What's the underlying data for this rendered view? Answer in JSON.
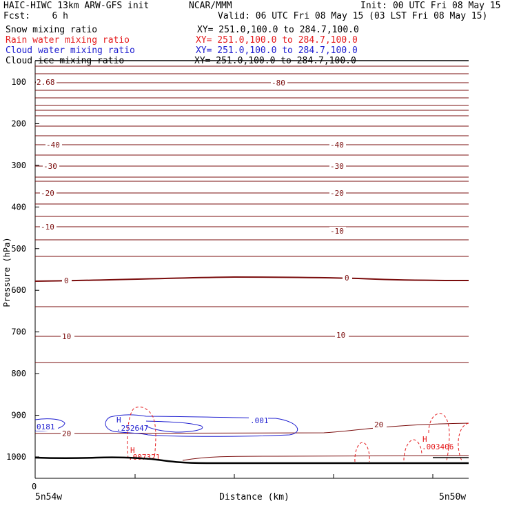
{
  "header": {
    "title": "HAIC-HIWC 13km ARW-GFS init",
    "center": "NCAR/MMM",
    "init": "Init: 00 UTC Fri 08 May 15",
    "fcst": "Fcst:    6 h",
    "valid": "Valid: 06 UTC Fri 08 May 15 (03 LST Fri 08 May 15)"
  },
  "fields": [
    {
      "name": "Snow mixing ratio",
      "xy": "XY= 251.0,100.0 to 284.7,100.0",
      "color": "#000000"
    },
    {
      "name": "Rain water mixing ratio",
      "xy": "XY= 251.0,100.0 to 284.7,100.0",
      "color": "#e41a1c"
    },
    {
      "name": "Cloud water mixing ratio",
      "xy": "XY= 251.0,100.0 to 284.7,100.0",
      "color": "#1f1fd0"
    },
    {
      "name": "Cloud ice mixing ratio",
      "xy": "XY= 251.0,100.0 to 284.7,100.0",
      "color": "#000000"
    }
  ],
  "chart_data": {
    "type": "contour cross-section",
    "xlabel": "Distance (km)",
    "ylabel": "Pressure (hPa)",
    "x_tick_labels": [
      "0"
    ],
    "x_end_labels": [
      "5n54w",
      "5n50w"
    ],
    "y_ticks": [
      100,
      200,
      300,
      400,
      500,
      600,
      700,
      800,
      900,
      1000
    ],
    "ylim": [
      1050,
      75
    ],
    "temperature_contours": [
      {
        "p": 115,
        "label": "-80"
      },
      {
        "p": 212,
        "label": "-40"
      },
      {
        "p": 240,
        "label": "-30"
      },
      {
        "p": 280,
        "label": "-20"
      },
      {
        "p": 327,
        "label": "-10"
      },
      {
        "p": 405,
        "label": "0"
      },
      {
        "p": 487,
        "label": "10"
      },
      {
        "p": 615,
        "label": "20"
      }
    ],
    "contour_labels": {
      "left_top": "2.68",
      "cloud_water_left": "0181",
      "cloud_water_high": "H",
      "cloud_water_max": ".252647",
      "cloud_water_level": ".001",
      "rain_high_1": "H",
      "rain_max_1": ".007321",
      "rain_high_2": "H",
      "rain_max_2": ".003406"
    },
    "colors": {
      "temperature": "#7a0c0c",
      "rain": "#e41a1c",
      "cloud_water": "#1f1fd0",
      "ground": "#000000"
    }
  }
}
